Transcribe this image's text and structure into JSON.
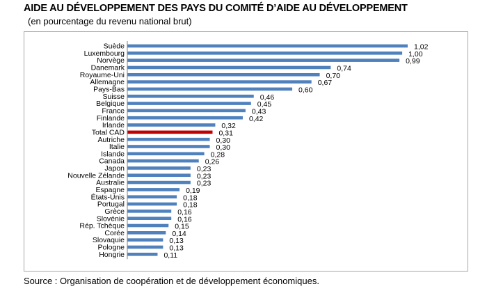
{
  "header": {
    "title": "AIDE AU DÉVELOPPEMENT DES PAYS DU COMITÉ D’AIDE AU DÉVELOPPEMENT",
    "subtitle": "(en pourcentage du revenu national brut)"
  },
  "footer": {
    "source": "Source : Organisation de coopération et de développement économiques."
  },
  "colors": {
    "bar": "#4f81bd",
    "highlight": "#c00000",
    "axis": "#808080",
    "frame": "#a6a6a6"
  },
  "chart_data": {
    "type": "bar",
    "orientation": "horizontal",
    "title": "AIDE AU DÉVELOPPEMENT DES PAYS DU COMITÉ D’AIDE AU DÉVELOPPEMENT",
    "subtitle": "(en pourcentage du revenu national brut)",
    "xlim": [
      0,
      1.02
    ],
    "grid": false,
    "legend": "none",
    "highlight_category": "Total CAD",
    "categories": [
      "Suède",
      "Luxembourg",
      "Norvège",
      "Danemark",
      "Royaume-Uni",
      "Allemagne",
      "Pays-Bas",
      "Suisse",
      "Belgique",
      "France",
      "Finlande",
      "Irlande",
      "Total CAD",
      "Autriche",
      "Italie",
      "Islande",
      "Canada",
      "Japon",
      "Nouvelle Zélande",
      "Australie",
      "Espagne",
      "États-Unis",
      "Portugal",
      "Grèce",
      "Slovénie",
      "Rép. Tchèque",
      "Corée",
      "Slovaquie",
      "Pologne",
      "Hongrie"
    ],
    "values": [
      1.02,
      1.0,
      0.99,
      0.74,
      0.7,
      0.67,
      0.6,
      0.46,
      0.45,
      0.43,
      0.42,
      0.32,
      0.31,
      0.3,
      0.3,
      0.28,
      0.26,
      0.23,
      0.23,
      0.23,
      0.19,
      0.18,
      0.18,
      0.16,
      0.16,
      0.15,
      0.14,
      0.13,
      0.13,
      0.11
    ],
    "value_labels": [
      "1,02",
      "1,00",
      "0,99",
      "0,74",
      "0,70",
      "0,67",
      "0,60",
      "0,46",
      "0,45",
      "0,43",
      "0,42",
      "0,32",
      "0,31",
      "0,30",
      "0,30",
      "0,28",
      "0,26",
      "0,23",
      "0,23",
      "0,23",
      "0,19",
      "0,18",
      "0,18",
      "0,16",
      "0,16",
      "0,15",
      "0,14",
      "0,13",
      "0,13",
      "0,11"
    ]
  }
}
